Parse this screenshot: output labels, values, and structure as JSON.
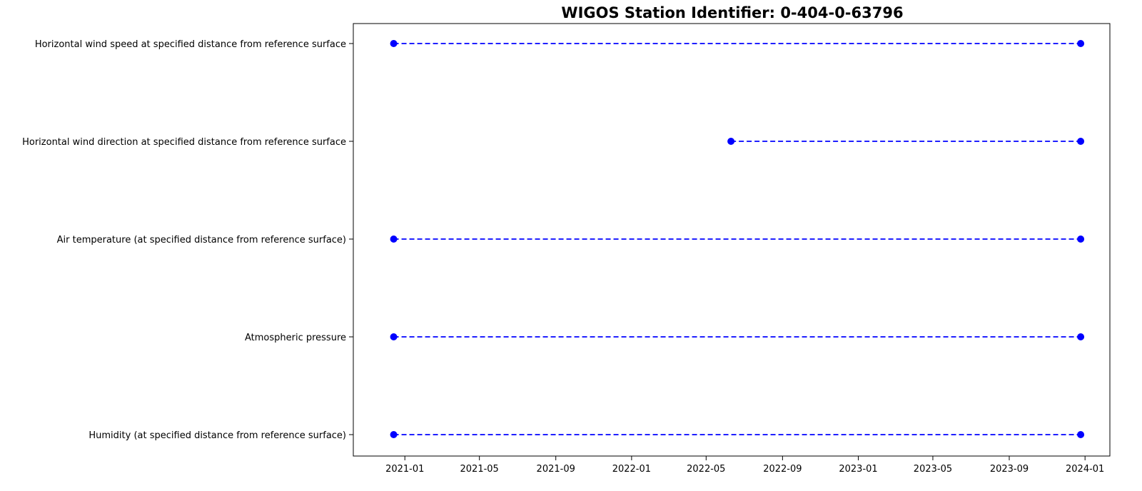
{
  "chart_data": {
    "type": "line",
    "title": "WIGOS Station Identifier: 0-404-0-63796",
    "xlabel": "",
    "ylabel": "",
    "x_axis_type": "date",
    "xlim": [
      "2020-10-10",
      "2024-02-10"
    ],
    "x_tick_labels": [
      "2021-01",
      "2021-05",
      "2021-09",
      "2022-01",
      "2022-05",
      "2022-09",
      "2023-01",
      "2023-05",
      "2023-09",
      "2024-01"
    ],
    "grid": false,
    "legend": false,
    "series_color": "#0000ff",
    "line_style": "dashed",
    "marker": "circle",
    "categories": [
      "Humidity  (at specified distance from reference surface)",
      "Atmospheric pressure",
      "Air temperature (at specified distance from reference surface)",
      "Horizontal wind direction at specified distance from reference surface",
      "Horizontal wind speed at specified distance from reference surface"
    ],
    "ranges": [
      {
        "start": "2020-12-14",
        "end": "2023-12-25"
      },
      {
        "start": "2020-12-14",
        "end": "2023-12-25"
      },
      {
        "start": "2020-12-14",
        "end": "2023-12-25"
      },
      {
        "start": "2022-06-10",
        "end": "2023-12-25"
      },
      {
        "start": "2020-12-14",
        "end": "2023-12-25"
      }
    ]
  }
}
